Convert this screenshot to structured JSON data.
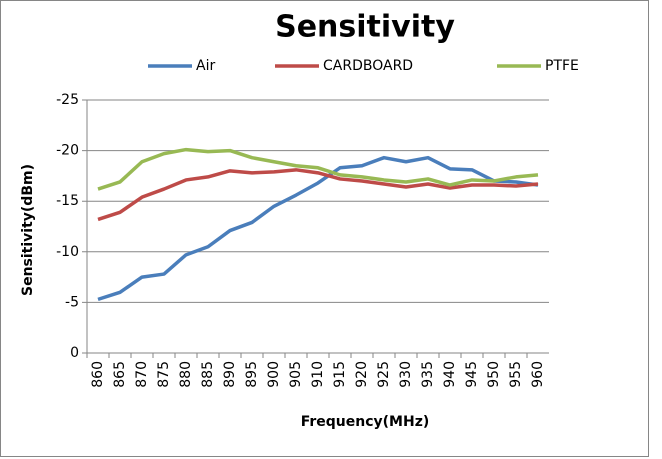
{
  "chart_data": {
    "type": "line",
    "title": "Sensitivity",
    "x_label": "Frequency(MHz)",
    "y_label": "Sensitivity(dBm)",
    "categories": [
      "860",
      "865",
      "870",
      "875",
      "880",
      "885",
      "890",
      "895",
      "900",
      "905",
      "910",
      "915",
      "920",
      "925",
      "930",
      "935",
      "940",
      "945",
      "950",
      "955",
      "960"
    ],
    "series": [
      {
        "name": "Air",
        "color": "#4a7ebb",
        "values": [
          -5.3,
          -6,
          -7.5,
          -7.8,
          -9.7,
          -10.5,
          -12.1,
          -12.9,
          -14.5,
          -15.6,
          -16.8,
          -18.3,
          -18.5,
          -19.3,
          -18.9,
          -19.3,
          -18.2,
          -18.1,
          -17,
          -16.9,
          -16.6
        ]
      },
      {
        "name": "CARDBOARD",
        "color": "#be4b48",
        "values": [
          -13.2,
          -13.9,
          -15.4,
          -16.2,
          -17.1,
          -17.4,
          -18,
          -17.8,
          -17.9,
          -18.1,
          -17.8,
          -17.2,
          -17,
          -16.7,
          -16.4,
          -16.7,
          -16.3,
          -16.6,
          -16.6,
          -16.5,
          -16.7
        ]
      },
      {
        "name": "PTFE",
        "color": "#98b954",
        "values": [
          -16.2,
          -16.9,
          -18.9,
          -19.7,
          -20.1,
          -19.9,
          -20,
          -19.3,
          -18.9,
          -18.5,
          -18.3,
          -17.6,
          -17.4,
          -17.1,
          -16.9,
          -17.2,
          -16.6,
          -17.1,
          -17,
          -17.4,
          -17.6
        ]
      }
    ],
    "ylim": [
      0,
      -25
    ],
    "yticks": [
      0,
      -5,
      -10,
      -15,
      -20,
      -25
    ],
    "grid": true,
    "legend": "top"
  }
}
